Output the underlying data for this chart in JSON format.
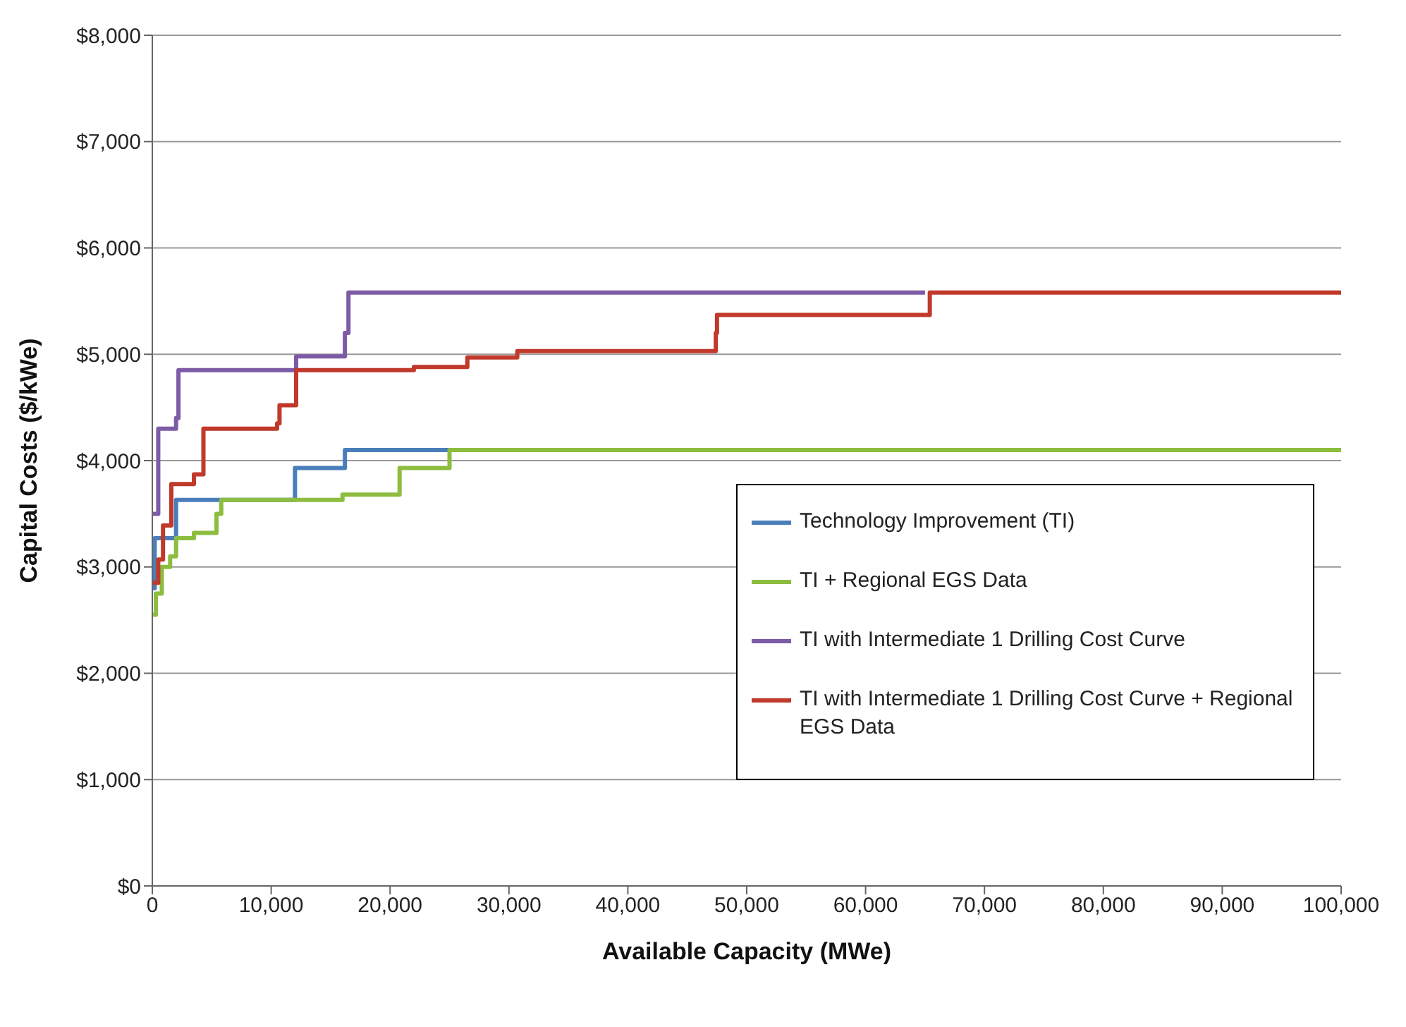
{
  "chart_data": {
    "type": "step",
    "xlabel": "Available Capacity (MWe)",
    "ylabel": "Capital Costs ($/kWe)",
    "xlim": [
      0,
      100000
    ],
    "xticks": [
      0,
      {
        "value": 10000,
        "label": "10,000"
      },
      {
        "value": 20000,
        "label": "20,000"
      },
      {
        "value": 30000,
        "label": "30,000"
      },
      {
        "value": 40000,
        "label": "40,000"
      },
      {
        "value": 50000,
        "label": "50,000"
      },
      {
        "value": 60000,
        "label": "60,000"
      },
      {
        "value": 70000,
        "label": "70,000"
      },
      {
        "value": 80000,
        "label": "80,000"
      },
      {
        "value": 90000,
        "label": "90,000"
      },
      {
        "value": 100000,
        "label": "100,000"
      }
    ],
    "ylim": [
      0,
      8000
    ],
    "yticks": [
      {
        "value": 0,
        "label": "$0"
      },
      {
        "value": 1000,
        "label": "$1,000"
      },
      {
        "value": 2000,
        "label": "$2,000"
      },
      {
        "value": 3000,
        "label": "$3,000"
      },
      {
        "value": 4000,
        "label": "$4,000"
      },
      {
        "value": 5000,
        "label": "$5,000"
      },
      {
        "value": 6000,
        "label": "$6,000"
      },
      {
        "value": 7000,
        "label": "$7,000"
      },
      {
        "value": 8000,
        "label": "$8,000"
      }
    ],
    "grid": "y",
    "legend": "right",
    "marker": "none",
    "line_style": "solid",
    "series": [
      {
        "name": "Technology Improvement (TI)",
        "color": "#4a7ebb",
        "x": [
          0,
          200,
          2000,
          12000,
          16200,
          25000
        ],
        "values": [
          2800,
          3270,
          3630,
          3930,
          4100,
          4100
        ]
      },
      {
        "name": "TI + Regional EGS Data",
        "color": "#8cbd3f",
        "x": [
          0,
          300,
          800,
          1500,
          2000,
          3500,
          5400,
          5800,
          16000,
          20800,
          25000,
          100000
        ],
        "values": [
          2550,
          2750,
          3000,
          3100,
          3270,
          3320,
          3500,
          3630,
          3680,
          3930,
          4100,
          4100
        ]
      },
      {
        "name": "TI with Intermediate 1 Drilling Cost Curve",
        "color": "#7d5ba6",
        "x": [
          0,
          500,
          2000,
          2200,
          12100,
          16200,
          16500,
          65000
        ],
        "values": [
          3500,
          4300,
          4400,
          4850,
          4980,
          5200,
          5580,
          5580
        ]
      },
      {
        "name": "TI with Intermediate 1 Drilling Cost Curve + Regional EGS Data",
        "color": "#c0392b",
        "x": [
          0,
          500,
          900,
          1600,
          3500,
          4300,
          10500,
          10700,
          12100,
          22000,
          26500,
          30700,
          47400,
          47500,
          65400,
          100000
        ],
        "values": [
          2850,
          3070,
          3390,
          3780,
          3870,
          4300,
          4350,
          4520,
          4850,
          4880,
          4970,
          5030,
          5200,
          5370,
          5580,
          5580
        ]
      }
    ]
  }
}
